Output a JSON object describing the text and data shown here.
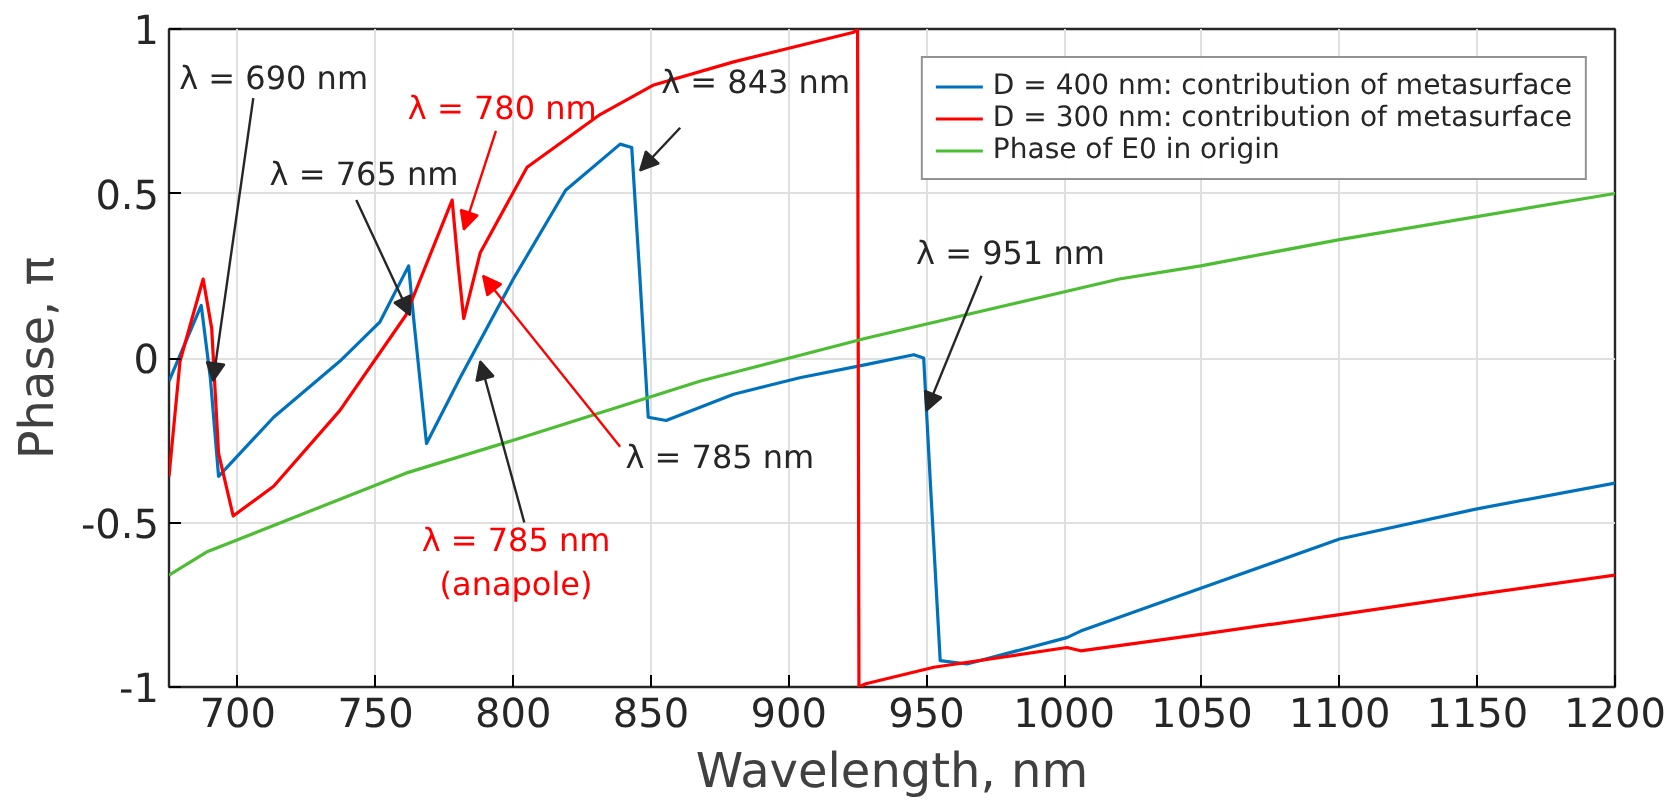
{
  "chart_data": {
    "type": "line",
    "xlabel": "Wavelength, nm",
    "ylabel": "Phase, π",
    "series": [
      {
        "name": "D = 400 nm: contribution of metasurface",
        "color": "#0072bd",
        "x": [
          675,
          686.7,
          690,
          693,
          713,
          737,
          751.6,
          762,
          763.7,
          768.5,
          780.7,
          800,
          819,
          838.8,
          843,
          846,
          849,
          855.5,
          880,
          904,
          928,
          945.4,
          949,
          951.5,
          955,
          964.7,
          1001,
          1006,
          1049.6,
          1100,
          1149,
          1200
        ],
        "values": [
          -0.07,
          0.16,
          -0.06,
          -0.36,
          -0.18,
          -0.01,
          0.11,
          0.28,
          0.13,
          -0.26,
          -0.06,
          0.24,
          0.51,
          0.65,
          0.64,
          0.24,
          -0.18,
          -0.19,
          -0.11,
          -0.06,
          -0.02,
          0.01,
          0.0,
          -0.39,
          -0.92,
          -0.93,
          -0.85,
          -0.83,
          -0.7,
          -0.55,
          -0.46,
          -0.38
        ]
      },
      {
        "name": "D = 300 nm: contribution of metasurface",
        "color": "#ff0000",
        "x": [
          675,
          679,
          687.4,
          690.5,
          693,
          698.3,
          713,
          737,
          761,
          777.8,
          780,
          782,
          788,
          805,
          831.5,
          851,
          880,
          923.6,
          925,
          925.5,
          928,
          952.7,
          1001,
          1006,
          1049.6,
          1100,
          1149,
          1200
        ],
        "values": [
          -0.36,
          -0.01,
          0.24,
          0.09,
          -0.29,
          -0.48,
          -0.39,
          -0.16,
          0.13,
          0.48,
          0.28,
          0.12,
          0.32,
          0.58,
          0.74,
          0.83,
          0.9,
          0.99,
          1.0,
          -1.0,
          -0.99,
          -0.94,
          -0.88,
          -0.89,
          -0.84,
          -0.78,
          -0.72,
          -0.66
        ]
      },
      {
        "name": "Phase of E0 in origin",
        "color": "#4dbd33",
        "x": [
          675,
          688.6,
          761,
          800,
          868,
          928,
          1020,
          1049.6,
          1100,
          1200
        ],
        "values": [
          -0.66,
          -0.59,
          -0.35,
          -0.25,
          -0.07,
          0.06,
          0.24,
          0.28,
          0.36,
          0.5
        ]
      }
    ],
    "xlim": [
      675,
      1200
    ],
    "ylim": [
      -1,
      1
    ],
    "xticks": [
      700,
      750,
      800,
      850,
      900,
      950,
      1000,
      1050,
      1100,
      1150,
      1200
    ],
    "yticks": [
      -1,
      {
        "value": -0.5,
        "label": "-0.5"
      },
      0,
      0.5,
      1
    ],
    "grid": true,
    "legend": "top right",
    "annotations": [
      {
        "text": "λ = 690 nm",
        "x": 691,
        "y": -0.07
      },
      {
        "text": "λ = 765 nm",
        "x": 762.5,
        "y": 0.13
      },
      {
        "text": "λ = 780 nm",
        "x": 782,
        "y": 0.39
      },
      {
        "text": "λ = 785 nm",
        "x": 789,
        "y": 0.25
      },
      {
        "text": "λ = 785 nm\n(anapole)",
        "x": 788,
        "y": -0.01
      },
      {
        "text": "λ = 843 nm",
        "x": 846,
        "y": 0.57
      },
      {
        "text": "λ = 951 nm",
        "x": 950,
        "y": -0.16
      }
    ]
  }
}
